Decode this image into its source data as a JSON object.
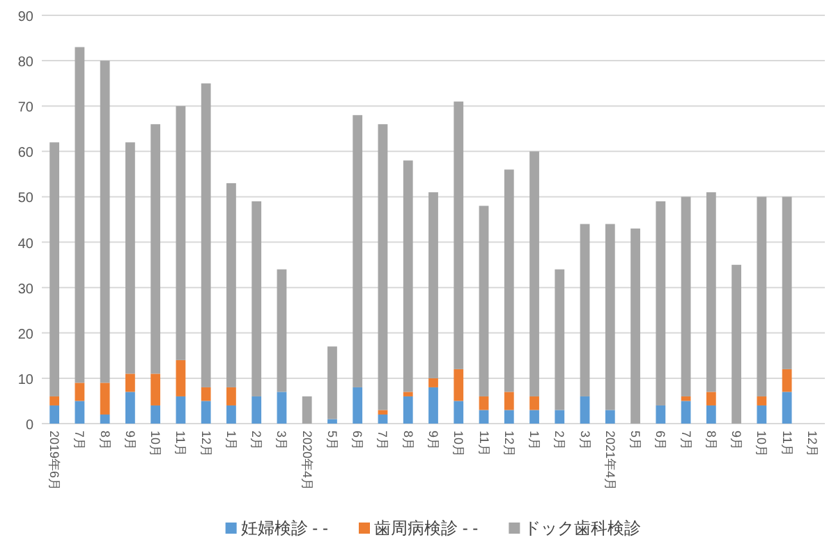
{
  "chart_data": {
    "type": "bar",
    "stacked": true,
    "categories": [
      "2019年6月",
      "7月",
      "8月",
      "9月",
      "10月",
      "11月",
      "12月",
      "1月",
      "2月",
      "3月",
      "2020年4月",
      "5月",
      "6月",
      "7月",
      "8月",
      "9月",
      "10月",
      "11月",
      "12月",
      "1月",
      "2月",
      "3月",
      "2021年4月",
      "5月",
      "6月",
      "7月",
      "8月",
      "9月",
      "10月",
      "11月",
      "12月"
    ],
    "series": [
      {
        "name": "妊婦検診 - -",
        "color": "#5b9bd5",
        "values": [
          4,
          5,
          2,
          7,
          4,
          6,
          5,
          4,
          6,
          7,
          0,
          1,
          8,
          2,
          6,
          8,
          5,
          3,
          3,
          3,
          3,
          6,
          3,
          0,
          4,
          5,
          4,
          0,
          4,
          7,
          null
        ]
      },
      {
        "name": "歯周病検診 - -",
        "color": "#ed7d31",
        "values": [
          2,
          4,
          7,
          4,
          7,
          8,
          3,
          4,
          0,
          0,
          0,
          0,
          0,
          1,
          1,
          2,
          7,
          3,
          4,
          3,
          0,
          0,
          0,
          0,
          0,
          1,
          3,
          0,
          2,
          5,
          null
        ]
      },
      {
        "name": "ドック歯科検診",
        "color": "#a5a5a5",
        "values": [
          56,
          74,
          71,
          51,
          55,
          56,
          67,
          45,
          43,
          27,
          6,
          16,
          60,
          63,
          51,
          41,
          59,
          42,
          49,
          54,
          31,
          38,
          41,
          43,
          45,
          44,
          44,
          35,
          44,
          38,
          null
        ]
      }
    ],
    "ylim": [
      0,
      90
    ],
    "yticks": [
      0,
      10,
      20,
      30,
      40,
      50,
      60,
      70,
      80,
      90
    ],
    "grid": "y",
    "legend": "bottom"
  }
}
